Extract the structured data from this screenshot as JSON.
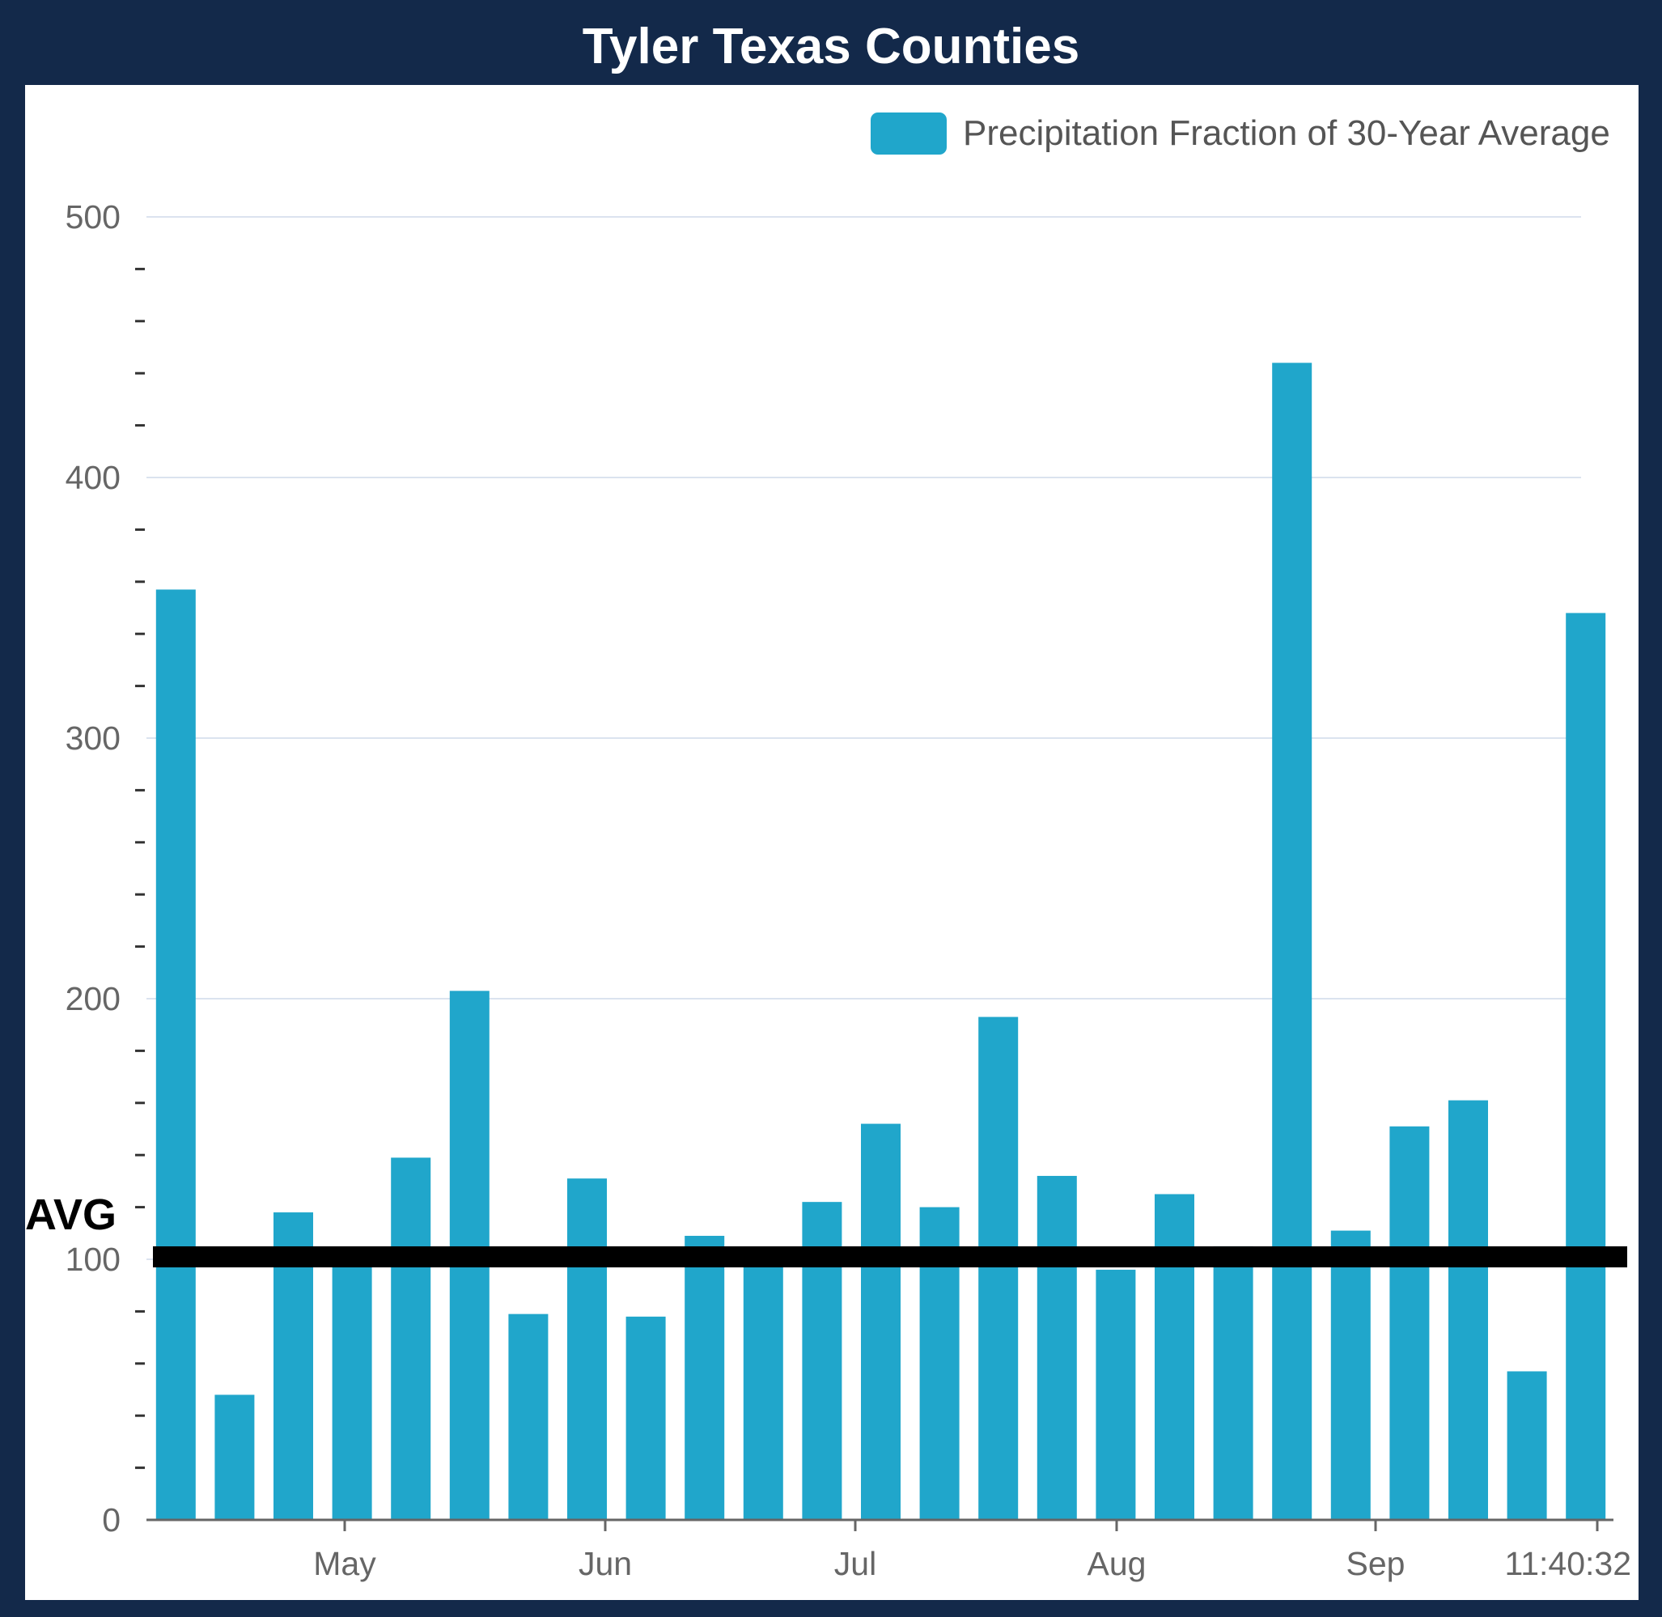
{
  "title": "Tyler Texas Counties",
  "avg_label": "AVG",
  "colors": {
    "background": "#13294a",
    "bar": "#20a6cb",
    "gridline": "#dbe3ef",
    "avg_line": "#000000"
  },
  "chart_data": {
    "type": "bar",
    "legend": "top-right",
    "grid": true,
    "ylim": [
      0,
      500
    ],
    "y_ticks": [
      "0",
      "100",
      "200",
      "300",
      "400",
      "500"
    ],
    "x_tick_labels": [
      "May",
      "Jun",
      "Jul",
      "Aug",
      "Sep",
      "11:40:32"
    ],
    "series": [
      {
        "name": "Precipitation Fraction of 30-Year Average",
        "values": [
          357,
          48,
          118,
          100,
          139,
          203,
          79,
          131,
          78,
          109,
          100,
          122,
          152,
          120,
          193,
          132,
          96,
          125,
          105,
          444,
          111,
          151,
          161,
          57,
          348
        ]
      }
    ],
    "reference_line": {
      "label": "AVG",
      "value": 100
    }
  }
}
